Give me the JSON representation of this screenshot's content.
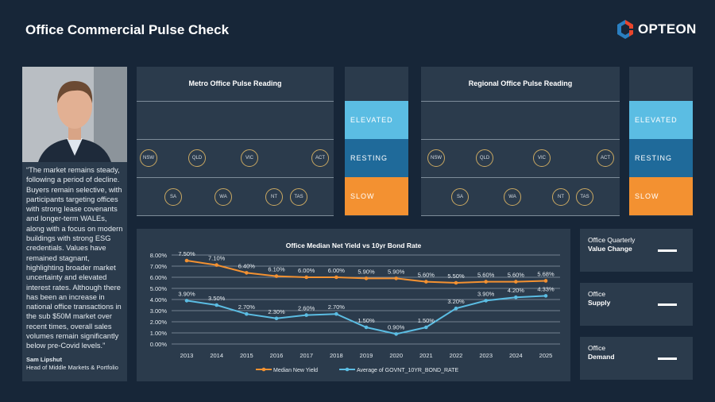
{
  "title": "Office Commercial Pulse Check",
  "logo": {
    "text": "OPTEON",
    "colors": [
      "#e8452c",
      "#2a7fc1"
    ]
  },
  "quote": {
    "text": "“The market remains steady, following a period of decline. Buyers remain selective, with participants targeting offices with strong lease covenants and longer-term WALEs, along with a focus on modern buildings with strong ESG credentials. Values have remained stagnant, highlighting broader market uncertainty and elevated interest rates. Although there has been an increase in national office transactions in the sub $50M market over recent times, overall sales volumes remain significantly below pre-Covid levels.”",
    "name": "Sam Lipshut",
    "role": "Head of Middle Markets & Portfolio"
  },
  "levels": [
    {
      "label": "ELEVATED",
      "color": "#5bbde3"
    },
    {
      "label": "RESTING",
      "color": "#1f6a9a"
    },
    {
      "label": "SLOW",
      "color": "#f39131"
    }
  ],
  "metro": {
    "title": "Metro Office Pulse Reading",
    "resting": [
      "NSW",
      "QLD",
      "VIC",
      "ACT"
    ],
    "slow": [
      "SA",
      "WA",
      "NT",
      "TAS"
    ]
  },
  "regional": {
    "title": "Regional Office Pulse Reading",
    "resting": [
      "NSW",
      "QLD",
      "VIC",
      "ACT"
    ],
    "slow": [
      "SA",
      "WA",
      "NT",
      "TAS"
    ]
  },
  "indicators": [
    {
      "label": "Office Quarterly",
      "bold": "Value Change",
      "value": "—"
    },
    {
      "label": "Office",
      "bold": "Supply",
      "value": "—"
    },
    {
      "label": "Office",
      "bold": "Demand",
      "value": "—"
    }
  ],
  "chart_data": {
    "type": "line",
    "title": "Office Median Net Yield vs 10yr Bond Rate",
    "categories": [
      "2013",
      "2014",
      "2015",
      "2016",
      "2017",
      "2018",
      "2019",
      "2020",
      "2021",
      "2022",
      "2023",
      "2024",
      "2025"
    ],
    "ylim": [
      0,
      8
    ],
    "yticks": [
      "0.00%",
      "1.00%",
      "2.00%",
      "3.00%",
      "4.00%",
      "5.00%",
      "6.00%",
      "7.00%",
      "8.00%"
    ],
    "grid": true,
    "legend": "bottom",
    "series": [
      {
        "name": "Median New Yield",
        "color": "#f39131",
        "values": [
          7.5,
          7.1,
          6.4,
          6.1,
          6.0,
          6.0,
          5.9,
          5.9,
          5.6,
          5.5,
          5.6,
          5.6,
          5.68
        ],
        "labels": [
          "7.50%",
          "7.10%",
          "6.40%",
          "6.10%",
          "6.00%",
          "6.00%",
          "5.90%",
          "5.90%",
          "5.60%",
          "5.50%",
          "5.60%",
          "5.60%",
          "5.68%"
        ]
      },
      {
        "name": "Average of GOVNT_10YR_BOND_RATE",
        "color": "#5bbde3",
        "values": [
          3.9,
          3.5,
          2.7,
          2.3,
          2.6,
          2.7,
          1.5,
          0.9,
          1.5,
          3.2,
          3.9,
          4.2,
          4.33
        ],
        "labels": [
          "3.90%",
          "3.50%",
          "2.70%",
          "2.30%",
          "2.60%",
          "2.70%",
          "1.50%",
          "0.90%",
          "1.50%",
          "3.20%",
          "3.90%",
          "4.20%",
          "4.33%"
        ]
      }
    ]
  }
}
